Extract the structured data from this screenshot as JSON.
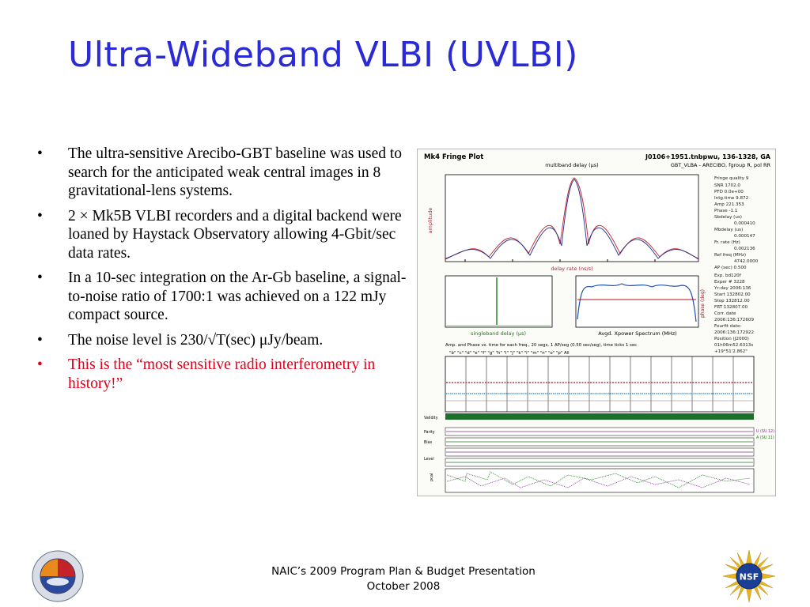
{
  "title": "Ultra-Wideband VLBI (UVLBI)",
  "bullets": [
    {
      "text": "The ultra-sensitive Arecibo-GBT baseline was used to search for the anticipated weak central images in 8 gravitational-lens systems.",
      "color": "#000000"
    },
    {
      "text": "2 × Mk5B VLBI recorders and a digital backend were loaned by Haystack Observatory allowing 4-Gbit/sec data rates.",
      "color": "#000000"
    },
    {
      "text": "In a 10-sec integration on the Ar-Gb baseline, a signal-to-noise ratio of 1700:1 was achieved on a 122 mJy compact source.",
      "color": "#000000"
    },
    {
      "text": "The noise level is 230/√T(sec) μJy/beam.",
      "color": "#000000"
    },
    {
      "text": "This is the “most sensitive radio interferometry in history!”",
      "color": "#e0001b"
    }
  ],
  "bullet_symbol": "•",
  "fringe_plot": {
    "header_left": "Mk4 Fringe Plot",
    "header_right": "J0106+1951.tnbpwu, 136-1328, GA",
    "header_right2": "GBT_VLBA - ARECIBO, fgroup R, pol RR",
    "top_axis_label": "multiband delay (μs)",
    "delay_rate_label": "delay rate (ns/s)",
    "singleband_label": "singleband delay (μs)",
    "xpower_label": "Avgd. Xpower Spectrum (MHz)",
    "amplitude_label": "amplitude",
    "phase_label": "phase (deg)",
    "amp_phase_caption": "Amp. and Phase vs. time for each freq., 20 segs, 1 AP/seg (0.50 sec/seg), time ticks 1 sec",
    "channel_letters": "\"b\"  \"c\"  \"d\"  \"e\"  \"f\"  \"g\"  \"h\"  \"i\"  \"j\"  \"k\"  \"l\"  \"m\"  \"n\"  \"o\"  \"p\"  All",
    "side_stats": [
      "Fringe quality  9",
      "SNR  1702.0",
      "PFD  0.0e+00",
      "Intg.time  9.872",
      "Amp  221.353",
      "Phase  -1.1",
      "Sbdelay (us)",
      "0.000410",
      "Mbdelay (us)",
      "0.000147",
      "Fr. rate (Hz)",
      "0.002136",
      "Ref freq (MHz)",
      "4742.0000",
      "AP (sec)  0.500",
      "Exp.  bd120f",
      "Exper #  3228",
      "Yr:day  2006:136",
      "Start  132802.00",
      "Stop  132812.00",
      "FRT  132807.00",
      "Corr. date",
      "2006:136:172609",
      "Fourfit date:",
      "2006:136:172922",
      "Position (J2000)",
      "01h06m52.6313s",
      "+19°51'2.862\""
    ],
    "row_labels": [
      "Validity",
      "Parity",
      "Bias",
      "Level",
      "pcal"
    ],
    "gb_labels": [
      "U (SU 12)",
      "A (SU 11)"
    ]
  },
  "footer": {
    "line1": "NAIC’s 2009 Program Plan & Budget Presentation",
    "line2": "October 2008"
  },
  "logos": {
    "left_name": "NAIC seal",
    "right_name": "NSF logo",
    "right_text": "NSF"
  }
}
